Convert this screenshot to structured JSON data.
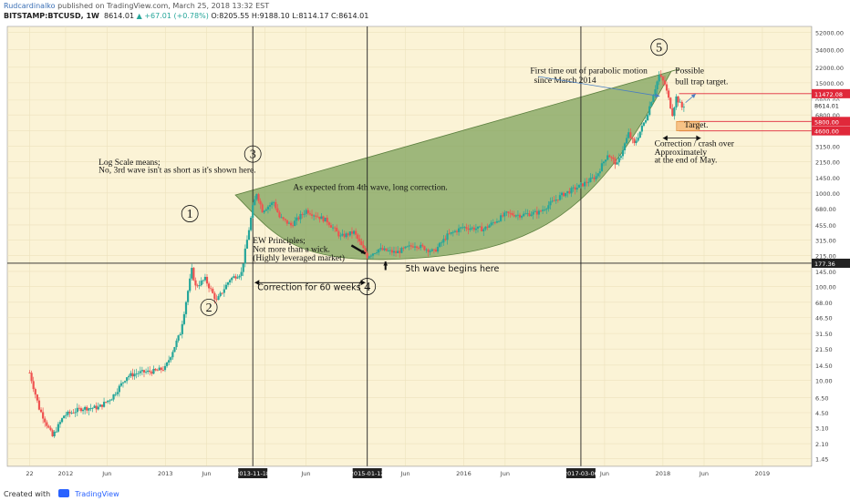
{
  "header": {
    "author": "Rudcardinalko",
    "published": "published on TradingView.com, March 25, 2018 13:32 EST",
    "symbol": "BITSTAMP:BTCUSD, 1W",
    "last": "8614.01",
    "change": "▲ +67.01 (+0.78%)",
    "ohlc": "O:8205.55 H:9188.10 L:8114.17 C:8614.01"
  },
  "footer": {
    "created_with": "Created with",
    "brand": "TradingView"
  },
  "colors": {
    "background": "#fbf3d6",
    "up": "#26a69a",
    "down": "#ef5350",
    "bowl": "#7fa35c",
    "price_tag": "#e0283a"
  },
  "chart_data": {
    "type": "candlestick",
    "y_scale": "log",
    "ylim": [
      1.2,
      60000
    ],
    "y_ticks": [
      "52000.00",
      "34000.00",
      "22000.00",
      "15000.00",
      "9800.00",
      "6800.00",
      "4600.00",
      "3150.00",
      "2150.00",
      "1450.00",
      "1000.00",
      "680.00",
      "455.00",
      "315.00",
      "215.00",
      "145.00",
      "100.00",
      "68.00",
      "46.50",
      "31.50",
      "21.50",
      "14.50",
      "10.00",
      "6.50",
      "4.50",
      "3.10",
      "2.10",
      "1.45"
    ],
    "y_tick_values": [
      52000,
      34000,
      22000,
      15000,
      9800,
      6800,
      4600,
      3150,
      2150,
      1450,
      1000,
      680,
      455,
      315,
      215,
      145,
      100,
      68,
      46.5,
      31.5,
      21.5,
      14.5,
      10,
      6.5,
      4.5,
      3.1,
      2.1,
      1.45
    ],
    "x_ticks": [
      "22",
      "2012",
      "Jun",
      "2013",
      "Jun",
      "2013-11-18",
      "4",
      "Jun",
      "2015-01-12",
      "Jun",
      "2016",
      "Jun",
      "2017-03-06",
      "Jun",
      "2018",
      "Jun",
      "2019"
    ],
    "x_tick_dates": [
      "2011-08-22",
      "2012-01-01",
      "2012-06-01",
      "2013-01-01",
      "2013-06-01",
      "2013-11-18",
      "2014-01-01",
      "2014-06-01",
      "2015-01-12",
      "2015-06-01",
      "2016-01-01",
      "2016-06-01",
      "2017-03-06",
      "2017-06-01",
      "2018-01-01",
      "2018-06-01",
      "2019-01-01"
    ],
    "x_range": [
      "2011-06-01",
      "2019-07-01"
    ],
    "price_path": [
      [
        "2011-08-22",
        12
      ],
      [
        "2011-09-26",
        5
      ],
      [
        "2011-11-14",
        2.5
      ],
      [
        "2011-12-26",
        4.2
      ],
      [
        "2012-03-01",
        5
      ],
      [
        "2012-05-01",
        5.1
      ],
      [
        "2012-06-18",
        6.5
      ],
      [
        "2012-08-13",
        11
      ],
      [
        "2012-09-24",
        12
      ],
      [
        "2012-11-26",
        12.5
      ],
      [
        "2013-01-01",
        13.5
      ],
      [
        "2013-02-25",
        32
      ],
      [
        "2013-03-25",
        90
      ],
      [
        "2013-04-08",
        150
      ],
      [
        "2013-04-22",
        100
      ],
      [
        "2013-05-27",
        120
      ],
      [
        "2013-07-08",
        70
      ],
      [
        "2013-08-26",
        120
      ],
      [
        "2013-10-07",
        140
      ],
      [
        "2013-11-18",
        700
      ],
      [
        "2013-12-02",
        1000
      ],
      [
        "2013-12-23",
        650
      ],
      [
        "2014-02-03",
        800
      ],
      [
        "2014-02-24",
        550
      ],
      [
        "2014-04-07",
        450
      ],
      [
        "2014-06-02",
        650
      ],
      [
        "2014-08-18",
        500
      ],
      [
        "2014-10-06",
        340
      ],
      [
        "2014-11-24",
        380
      ],
      [
        "2015-01-12",
        210
      ],
      [
        "2015-02-23",
        250
      ],
      [
        "2015-04-27",
        230
      ],
      [
        "2015-07-06",
        280
      ],
      [
        "2015-09-14",
        235
      ],
      [
        "2015-11-02",
        350
      ],
      [
        "2015-12-28",
        430
      ],
      [
        "2016-03-14",
        410
      ],
      [
        "2016-06-06",
        600
      ],
      [
        "2016-07-25",
        580
      ],
      [
        "2016-10-03",
        620
      ],
      [
        "2016-12-26",
        950
      ],
      [
        "2017-03-06",
        1200
      ],
      [
        "2017-05-01",
        1500
      ],
      [
        "2017-06-12",
        2600
      ],
      [
        "2017-07-17",
        2000
      ],
      [
        "2017-08-28",
        4300
      ],
      [
        "2017-09-18",
        3300
      ],
      [
        "2017-10-30",
        6200
      ],
      [
        "2017-12-18",
        18000
      ],
      [
        "2018-01-08",
        14500
      ],
      [
        "2018-02-05",
        7000
      ],
      [
        "2018-02-19",
        10500
      ],
      [
        "2018-03-12",
        8200
      ],
      [
        "2018-03-19",
        8614
      ]
    ],
    "horizontal_lines": [
      {
        "value": 177.36,
        "label": "177.36"
      },
      {
        "value": 11472.08,
        "label": "11472.08"
      },
      {
        "value": 5800,
        "label": "5800.00"
      },
      {
        "value": 4600,
        "label": "4600.00"
      }
    ],
    "current_price": {
      "value": 8614.01,
      "label": "8614.01"
    },
    "vertical_lines": [
      "2013-11-18",
      "2015-01-12",
      "2017-03-06"
    ],
    "wave_labels": [
      {
        "label": "1",
        "date": "2013-04-01",
        "price": 600
      },
      {
        "label": "2",
        "date": "2013-06-10",
        "price": 60
      },
      {
        "label": "3",
        "date": "2013-11-18",
        "price": 2600
      },
      {
        "label": "4",
        "date": "2015-01-12",
        "price": 100
      },
      {
        "label": "5",
        "date": "2017-12-18",
        "price": 36000
      }
    ],
    "annotations": [
      {
        "text": "Log Scale means;",
        "date": "2012-05-01",
        "price": 2000
      },
      {
        "text": "No, 3rd wave isn't as short as it's shown here.",
        "date": "2012-05-01",
        "price": 1650
      },
      {
        "text": "As expected from 4th wave, long correction.",
        "date": "2014-04-15",
        "price": 1080
      },
      {
        "text": "EW Principles;",
        "date": "2013-11-18",
        "price": 290
      },
      {
        "text": "Not more than a wick.",
        "date": "2013-11-18",
        "price": 235
      },
      {
        "text": "(Highly leveraged market)",
        "date": "2013-11-18",
        "price": 190
      },
      {
        "text": "Correction for 60 weeks",
        "date": "2013-12-05",
        "price": 92
      },
      {
        "text": "5th wave begins here",
        "date": "2015-06-01",
        "price": 145
      },
      {
        "text": "First time out of parabolic motion",
        "date": "2016-09-01",
        "price": 19000
      },
      {
        "text": "since March 2014",
        "date": "2016-09-15",
        "price": 15000
      },
      {
        "text": "Possible",
        "date": "2018-02-15",
        "price": 19000
      },
      {
        "text": "bull trap target.",
        "date": "2018-02-15",
        "price": 14500
      },
      {
        "text": "Target.",
        "date": "2018-03-20",
        "price": 5000
      },
      {
        "text": "Correction / crash over",
        "date": "2017-12-01",
        "price": 3150
      },
      {
        "text": "Approximately",
        "date": "2017-12-01",
        "price": 2550
      },
      {
        "text": "at the end of May.",
        "date": "2017-12-01",
        "price": 2100
      }
    ],
    "target_zone": {
      "from_date": "2018-02-20",
      "to_date": "2018-05-15",
      "high": 5800,
      "low": 4600
    },
    "bowl_shape": {
      "start": [
        "2013-09-15",
        950
      ],
      "bottom": [
        "2015-04-01",
        195
      ],
      "right_tip": [
        "2018-02-01",
        20000
      ]
    }
  }
}
